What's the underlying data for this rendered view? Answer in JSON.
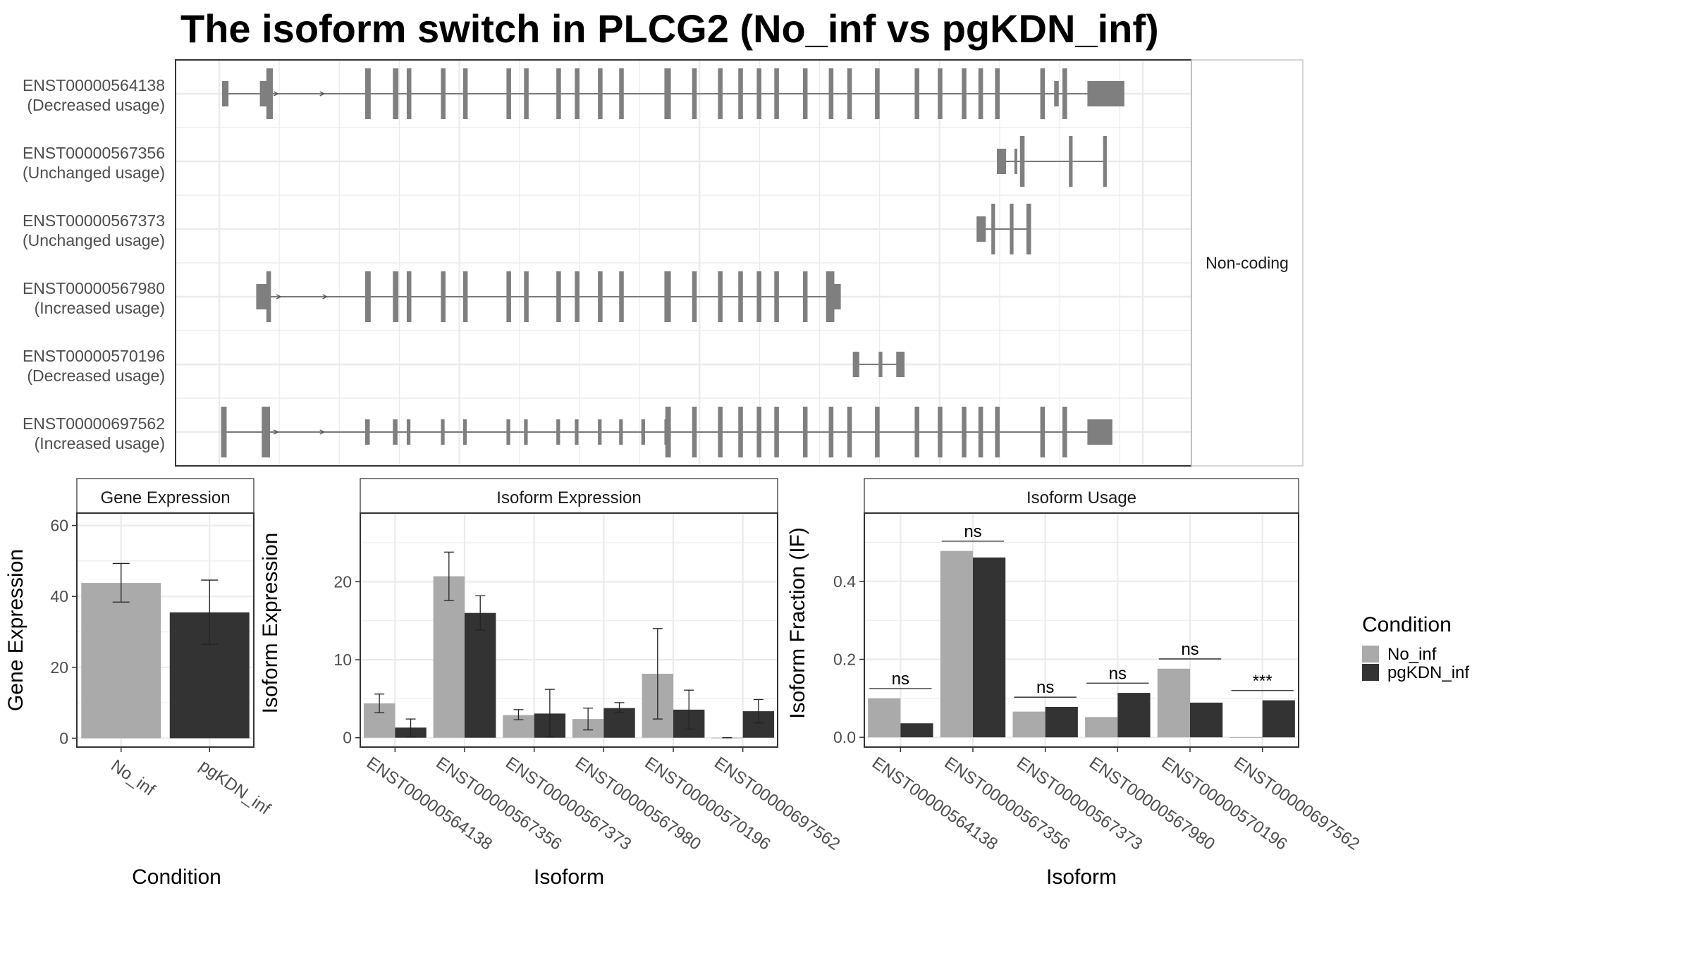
{
  "title": "The isoform switch in PLCG2 (No_inf vs pgKDN_inf)",
  "colors": {
    "No_inf": "#aaaaaa",
    "pgKDN_inf": "#333333",
    "exon": "#7f7f7f",
    "grid": "#ebebeb"
  },
  "structure": {
    "strip_label": "Non-coding",
    "isoforms": [
      {
        "id": "ENST00000564138",
        "usage": "(Decreased usage)",
        "exons": [
          [
            0.3,
            1.0,
            "n"
          ],
          [
            4.4,
            5.4,
            "n"
          ],
          [
            5.1,
            5.8,
            "w"
          ],
          [
            15.8,
            16.4,
            "w"
          ],
          [
            18.8,
            19.4,
            "w"
          ],
          [
            20.3,
            20.8,
            "w"
          ],
          [
            24.0,
            24.5,
            "w"
          ],
          [
            26.4,
            26.9,
            "w"
          ],
          [
            31.1,
            31.6,
            "w"
          ],
          [
            33.0,
            33.5,
            "w"
          ],
          [
            36.5,
            37.0,
            "w"
          ],
          [
            38.5,
            39.0,
            "w"
          ],
          [
            41.0,
            41.5,
            "w"
          ],
          [
            43.3,
            43.8,
            "w"
          ],
          [
            48.2,
            48.9,
            "w"
          ],
          [
            51.2,
            51.7,
            "w"
          ],
          [
            54.0,
            54.5,
            "w"
          ],
          [
            56.2,
            56.7,
            "w"
          ],
          [
            58.2,
            58.7,
            "w"
          ],
          [
            60.1,
            60.6,
            "w"
          ],
          [
            63.2,
            63.7,
            "w"
          ],
          [
            66.0,
            66.5,
            "w"
          ],
          [
            68.0,
            68.5,
            "w"
          ],
          [
            71.0,
            71.5,
            "w"
          ],
          [
            75.3,
            75.8,
            "w"
          ],
          [
            77.8,
            78.3,
            "w"
          ],
          [
            80.4,
            80.9,
            "w"
          ],
          [
            82.2,
            82.7,
            "w"
          ],
          [
            84.0,
            84.5,
            "w"
          ],
          [
            88.9,
            89.4,
            "w"
          ],
          [
            90.4,
            90.9,
            "n"
          ],
          [
            91.3,
            91.8,
            "w"
          ],
          [
            94.0,
            98.0,
            "t"
          ]
        ],
        "intron": [
          0.6,
          96.0
        ]
      },
      {
        "id": "ENST00000567356",
        "usage": "(Unchanged usage)",
        "exons": [
          [
            84.2,
            85.2,
            "t"
          ],
          [
            86.1,
            86.4,
            "n"
          ],
          [
            86.7,
            87.2,
            "w"
          ],
          [
            92.0,
            92.4,
            "w"
          ],
          [
            95.7,
            96.1,
            "w"
          ]
        ],
        "intron": [
          84.7,
          96.0
        ]
      },
      {
        "id": "ENST00000567373",
        "usage": "(Unchanged usage)",
        "exons": [
          [
            82.0,
            83.0,
            "t"
          ],
          [
            83.6,
            84.0,
            "w"
          ],
          [
            85.6,
            86.0,
            "w"
          ],
          [
            87.4,
            87.9,
            "w"
          ]
        ],
        "intron": [
          82.5,
          87.7
        ]
      },
      {
        "id": "ENST00000567980",
        "usage": "(Increased usage)",
        "exons": [
          [
            4.0,
            5.2,
            "t"
          ],
          [
            5.1,
            5.6,
            "w"
          ],
          [
            15.8,
            16.4,
            "w"
          ],
          [
            18.8,
            19.4,
            "w"
          ],
          [
            20.3,
            20.8,
            "w"
          ],
          [
            24.0,
            24.5,
            "w"
          ],
          [
            26.4,
            26.9,
            "w"
          ],
          [
            31.1,
            31.6,
            "w"
          ],
          [
            33.0,
            33.5,
            "w"
          ],
          [
            36.5,
            37.0,
            "w"
          ],
          [
            38.5,
            39.0,
            "w"
          ],
          [
            41.0,
            41.5,
            "w"
          ],
          [
            43.3,
            43.8,
            "w"
          ],
          [
            48.2,
            48.9,
            "w"
          ],
          [
            51.2,
            51.7,
            "w"
          ],
          [
            54.0,
            54.5,
            "w"
          ],
          [
            56.2,
            56.7,
            "w"
          ],
          [
            58.2,
            58.7,
            "w"
          ],
          [
            60.1,
            60.6,
            "w"
          ],
          [
            63.2,
            63.7,
            "w"
          ],
          [
            65.7,
            66.6,
            "w"
          ],
          [
            66.3,
            67.3,
            "t"
          ]
        ],
        "intron": [
          4.5,
          66.5
        ]
      },
      {
        "id": "ENST00000570196",
        "usage": "(Decreased usage)",
        "exons": [
          [
            68.6,
            69.3,
            "t"
          ],
          [
            71.4,
            71.8,
            "t"
          ],
          [
            73.3,
            74.2,
            "t"
          ]
        ],
        "intron": [
          68.9,
          73.7
        ]
      },
      {
        "id": "ENST00000697562",
        "usage": "(Increased usage)",
        "exons": [
          [
            0.2,
            0.8,
            "w"
          ],
          [
            4.6,
            5.5,
            "w"
          ],
          [
            15.8,
            16.3,
            "n"
          ],
          [
            18.8,
            19.3,
            "n"
          ],
          [
            20.3,
            20.7,
            "n"
          ],
          [
            24.0,
            24.4,
            "n"
          ],
          [
            26.4,
            26.8,
            "n"
          ],
          [
            31.1,
            31.5,
            "n"
          ],
          [
            33.0,
            33.4,
            "n"
          ],
          [
            36.5,
            36.9,
            "n"
          ],
          [
            38.5,
            38.9,
            "n"
          ],
          [
            41.0,
            41.4,
            "n"
          ],
          [
            43.3,
            43.7,
            "n"
          ],
          [
            45.7,
            46.1,
            "n"
          ],
          [
            48.2,
            48.6,
            "n"
          ],
          [
            48.3,
            48.9,
            "w"
          ],
          [
            51.2,
            51.7,
            "w"
          ],
          [
            54.0,
            54.5,
            "w"
          ],
          [
            56.2,
            56.7,
            "w"
          ],
          [
            58.2,
            58.7,
            "w"
          ],
          [
            60.1,
            60.6,
            "w"
          ],
          [
            63.2,
            63.7,
            "w"
          ],
          [
            66.0,
            66.5,
            "w"
          ],
          [
            68.0,
            68.5,
            "w"
          ],
          [
            71.0,
            71.5,
            "w"
          ],
          [
            75.3,
            75.8,
            "w"
          ],
          [
            77.8,
            78.3,
            "w"
          ],
          [
            80.4,
            80.9,
            "w"
          ],
          [
            82.2,
            82.7,
            "w"
          ],
          [
            84.0,
            84.5,
            "w"
          ],
          [
            88.9,
            89.4,
            "w"
          ],
          [
            91.3,
            91.8,
            "w"
          ],
          [
            94.0,
            96.7,
            "t"
          ]
        ],
        "intron": [
          0.5,
          95.5
        ]
      }
    ]
  },
  "chart_data": [
    {
      "type": "bar",
      "panel_title": "Gene Expression",
      "xlabel": "Condition",
      "ylabel": "Gene Expression",
      "categories": [
        "No_inf",
        "pgKDN_inf"
      ],
      "values": [
        43.8,
        35.5
      ],
      "error_low": [
        38.4,
        26.5
      ],
      "error_high": [
        49.3,
        44.6
      ],
      "ylim": [
        -2.5,
        63.5
      ],
      "yticks": [
        "0",
        "20",
        "40",
        "60"
      ]
    },
    {
      "type": "bar",
      "panel_title": "Isoform Expression",
      "xlabel": "Isoform",
      "ylabel": "Isoform Expression",
      "categories": [
        "ENST00000564138",
        "ENST00000567356",
        "ENST00000567373",
        "ENST00000567980",
        "ENST00000570196",
        "ENST00000697562"
      ],
      "series": [
        {
          "name": "No_inf",
          "values": [
            4.4,
            20.7,
            2.9,
            2.4,
            8.2,
            0.0
          ],
          "error_low": [
            3.2,
            17.6,
            2.3,
            1.0,
            2.4,
            0.0
          ],
          "error_high": [
            5.6,
            23.8,
            3.6,
            3.8,
            14.0,
            0.0
          ]
        },
        {
          "name": "pgKDN_inf",
          "values": [
            1.3,
            16.0,
            3.1,
            3.8,
            3.6,
            3.4
          ],
          "error_low": [
            0.1,
            13.8,
            0.1,
            3.2,
            1.1,
            1.9
          ],
          "error_high": [
            2.4,
            18.2,
            6.2,
            4.5,
            6.1,
            4.9
          ]
        }
      ],
      "ylim": [
        -1.2,
        28.8
      ],
      "yticks": [
        "0",
        "10",
        "20"
      ]
    },
    {
      "type": "bar",
      "panel_title": "Isoform Usage",
      "xlabel": "Isoform",
      "ylabel": "Isoform Fraction (IF)",
      "categories": [
        "ENST00000564138",
        "ENST00000567356",
        "ENST00000567373",
        "ENST00000567980",
        "ENST00000570196",
        "ENST00000697562"
      ],
      "series": [
        {
          "name": "No_inf",
          "values": [
            0.1,
            0.478,
            0.066,
            0.052,
            0.176,
            0.0
          ]
        },
        {
          "name": "pgKDN_inf",
          "values": [
            0.036,
            0.461,
            0.078,
            0.114,
            0.089,
            0.095
          ]
        }
      ],
      "significance": [
        "ns",
        "ns",
        "ns",
        "ns",
        "ns",
        "***"
      ],
      "sig_y": [
        0.125,
        0.503,
        0.103,
        0.139,
        0.201,
        0.12
      ],
      "ylim": [
        -0.025,
        0.575
      ],
      "yticks": [
        "0.0",
        "0.2",
        "0.4"
      ]
    }
  ],
  "legend": {
    "title": "Condition",
    "items": [
      {
        "name": "No_inf",
        "color": "#aaaaaa"
      },
      {
        "name": "pgKDN_inf",
        "color": "#333333"
      }
    ]
  }
}
